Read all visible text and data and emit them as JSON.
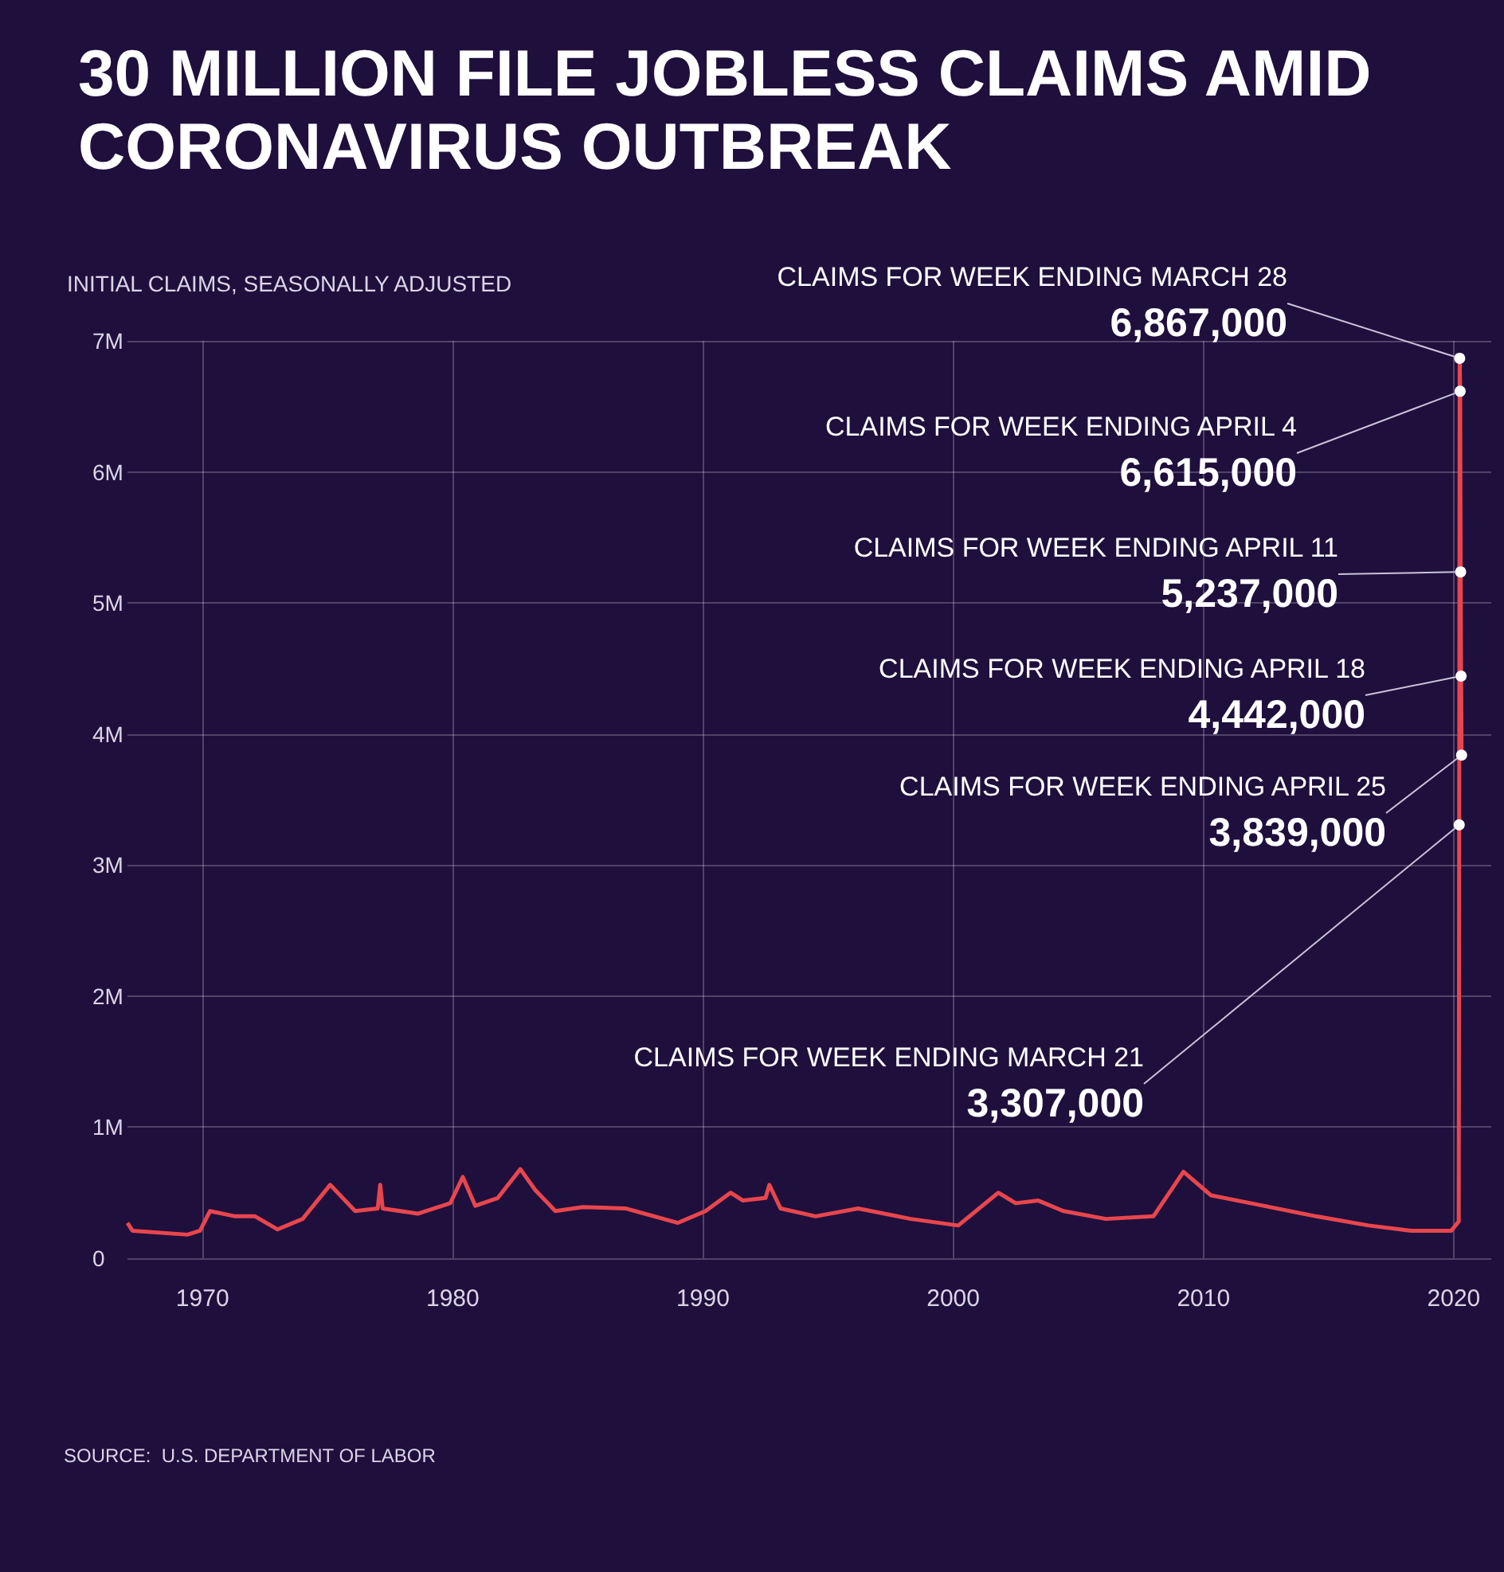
{
  "chart_data": {
    "type": "line",
    "title": "30 MILLION FILE JOBLESS CLAIMS AMID CORONAVIRUS OUTBREAK",
    "ylabel": "INITIAL CLAIMS, SEASONALLY ADJUSTED",
    "x": [
      1967.0,
      1967.2,
      1969.4,
      1969.9,
      1970.3,
      1971.3,
      1972.1,
      1973.0,
      1974.0,
      1975.1,
      1976.1,
      1977.0,
      1977.1,
      1977.2,
      1978.6,
      1979.9,
      1980.4,
      1980.9,
      1981.8,
      1982.7,
      1983.3,
      1984.1,
      1985.2,
      1986.9,
      1989.0,
      1990.1,
      1991.1,
      1991.6,
      1992.5,
      1992.65,
      1993.1,
      1994.5,
      1996.2,
      1998.3,
      2000.2,
      2001.8,
      2002.5,
      2003.4,
      2004.4,
      2006.1,
      2008.0,
      2009.2,
      2010.3,
      2012.4,
      2014.5,
      2016.6,
      2018.3,
      2019.9,
      2020.2,
      2020.219,
      2020.238,
      2020.257,
      2020.276,
      2020.295,
      2020.314
    ],
    "series": [
      {
        "color": "#e8464d",
        "values": [
          270000,
          210000,
          180000,
          210000,
          360000,
          320000,
          320000,
          220000,
          300000,
          560000,
          360000,
          380000,
          560000,
          380000,
          340000,
          420000,
          620000,
          400000,
          460000,
          680000,
          520000,
          360000,
          390000,
          380000,
          270000,
          360000,
          500000,
          440000,
          460000,
          560000,
          380000,
          320000,
          380000,
          300000,
          250000,
          500000,
          420000,
          440000,
          360000,
          300000,
          320000,
          660000,
          480000,
          400000,
          320000,
          250000,
          210000,
          210000,
          280000,
          3307000,
          6867000,
          6615000,
          5237000,
          4442000,
          3839000
        ],
        "value_labels": [
          null,
          null,
          null,
          null,
          null,
          null,
          null,
          null,
          null,
          null,
          null,
          null,
          null,
          null,
          null,
          null,
          null,
          null,
          null,
          null,
          null,
          null,
          null,
          null,
          null,
          null,
          null,
          null,
          null,
          null,
          null,
          null,
          null,
          null,
          null,
          null,
          null,
          null,
          null,
          null,
          null,
          null,
          null,
          null,
          null,
          null,
          null,
          null,
          null,
          "3,307,000",
          "6,867,000",
          "6,615,000",
          "5,237,000",
          "4,442,000",
          "3,839,000"
        ]
      }
    ],
    "xlim": [
      1967,
      2021.5
    ],
    "xticks": [
      1970,
      1980,
      1990,
      2000,
      2010,
      2020
    ],
    "ylim": [
      0,
      7000000
    ],
    "yticks": [
      0,
      {
        "value": 1000000,
        "label": "1M"
      },
      {
        "value": 2000000,
        "label": "2M"
      },
      {
        "value": 3000000,
        "label": "3M"
      },
      {
        "value": 4000000,
        "label": "4M"
      },
      {
        "value": 5000000,
        "label": "5M"
      },
      {
        "value": 6000000,
        "label": "6M"
      },
      {
        "value": 7000000,
        "label": "7M"
      }
    ],
    "grid": true,
    "annotations": [
      {
        "text": "CLAIMS FOR WEEK ENDING MARCH 28",
        "x": 2020.238,
        "y": 6867000
      },
      {
        "text": "CLAIMS FOR WEEK ENDING APRIL 4",
        "x": 2020.257,
        "y": 6615000
      },
      {
        "text": "CLAIMS FOR WEEK ENDING APRIL 11",
        "x": 2020.276,
        "y": 5237000
      },
      {
        "text": "CLAIMS FOR WEEK ENDING APRIL 18",
        "x": 2020.295,
        "y": 4442000
      },
      {
        "text": "CLAIMS FOR WEEK ENDING APRIL 25",
        "x": 2020.314,
        "y": 3839000
      },
      {
        "text": "CLAIMS FOR WEEK ENDING MARCH 21",
        "x": 2020.219,
        "y": 3307000
      },
      "SOURCE:  U.S. DEPARTMENT OF LABOR"
    ]
  }
}
